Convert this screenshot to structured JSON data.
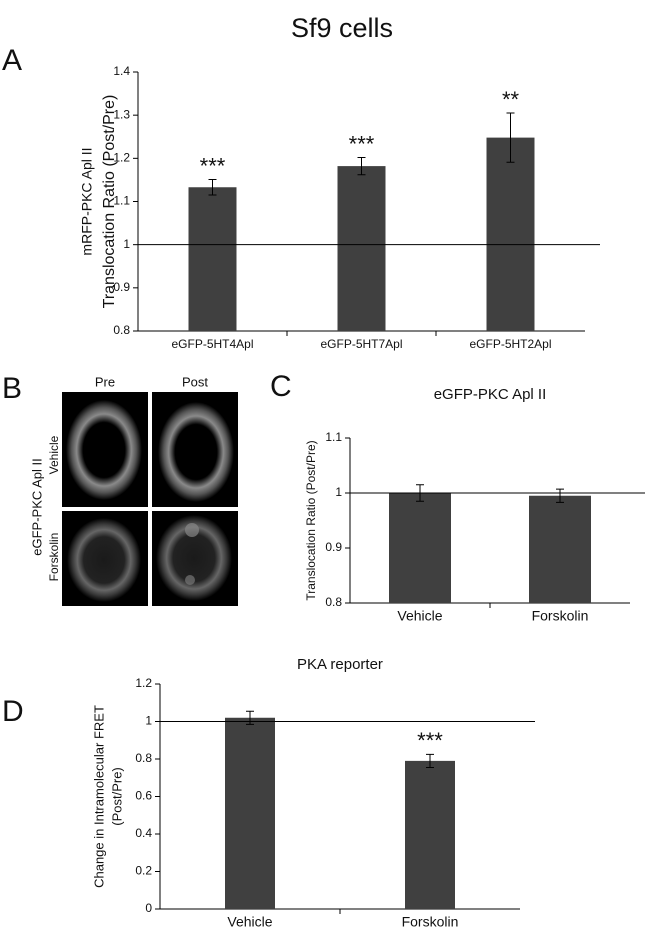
{
  "title": "Sf9 cells",
  "chart_data": [
    {
      "type": "bar",
      "panel": "A",
      "ylabel": [
        "mRFP-PKC Apl II",
        "Translocation Ratio (Post/Pre)"
      ],
      "categories": [
        "eGFP-5HT4Apl",
        "eGFP-5HT7Apl",
        "eGFP-5HT2Apl"
      ],
      "values": [
        1.133,
        1.182,
        1.248
      ],
      "errors": [
        0.018,
        0.02,
        0.057
      ],
      "annotations": [
        "***",
        "***",
        "**"
      ],
      "reference_line": 1,
      "ylim": [
        0.8,
        1.4
      ],
      "yticks": [
        0.8,
        0.9,
        1,
        1.1,
        1.2,
        1.3,
        1.4
      ],
      "color": "#404040"
    },
    {
      "type": "bar",
      "panel": "C",
      "title": "eGFP-PKC Apl II",
      "ylabel": [
        "Translocation Ratio (Post/Pre)"
      ],
      "categories": [
        "Vehicle",
        "Forskolin"
      ],
      "values": [
        1.0,
        0.995
      ],
      "errors": [
        0.015,
        0.012
      ],
      "reference_line": 1,
      "ylim": [
        0.8,
        1.1
      ],
      "yticks": [
        0.8,
        0.9,
        1,
        1.1
      ],
      "color": "#404040"
    },
    {
      "type": "bar",
      "panel": "D",
      "title": "PKA reporter",
      "ylabel": [
        "Change in Intramolecular FRET",
        "(Post/Pre)"
      ],
      "categories": [
        "Vehicle",
        "Forskolin"
      ],
      "values": [
        1.02,
        0.79
      ],
      "errors": [
        0.035,
        0.035
      ],
      "annotations": [
        null,
        "***"
      ],
      "reference_line": 1,
      "ylim": [
        0,
        1.2
      ],
      "yticks": [
        0,
        0.2,
        0.4,
        0.6,
        0.8,
        1,
        1.2
      ],
      "color": "#404040"
    }
  ],
  "panel_b": {
    "panel": "B",
    "columns": [
      "Pre",
      "Post"
    ],
    "rows": [
      "Vehicle",
      "Forskolin"
    ],
    "ylabel": "eGFP-PKC Apl II"
  }
}
